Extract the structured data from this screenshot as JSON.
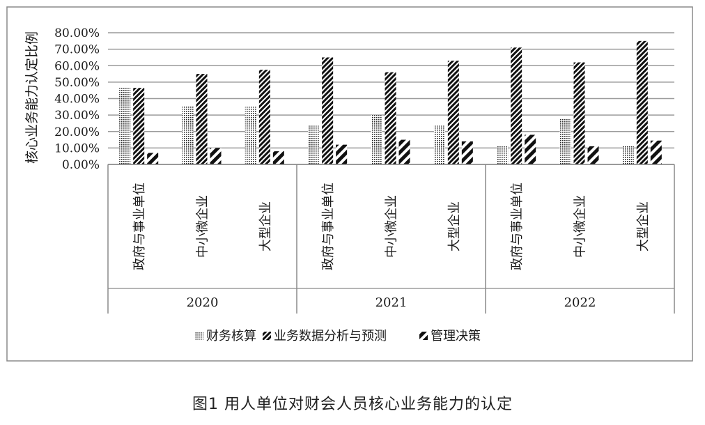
{
  "chart_data": {
    "type": "bar",
    "ylabel": "核心业务能力认定比例",
    "ylim": [
      0,
      80
    ],
    "yticks": [
      "0.00%",
      "10.00%",
      "20.00%",
      "30.00%",
      "40.00%",
      "50.00%",
      "60.00%",
      "70.00%",
      "80.00%"
    ],
    "groups": [
      {
        "label": "2020",
        "categories": [
          "政府与事业单位",
          "中小微企业",
          "大型企业"
        ]
      },
      {
        "label": "2021",
        "categories": [
          "政府与事业单位",
          "中小微企业",
          "大型企业"
        ]
      },
      {
        "label": "2022",
        "categories": [
          "政府与事业单位",
          "中小微企业",
          "大型企业"
        ]
      }
    ],
    "series": [
      {
        "name": "财务核算",
        "pattern": "dots",
        "values": [
          46.5,
          35.5,
          35,
          23.5,
          30,
          23.5,
          11.5,
          28,
          11
        ]
      },
      {
        "name": "业务数据分析与预测",
        "pattern": "dense-hatch",
        "values": [
          46.5,
          55,
          57.5,
          65,
          56,
          63,
          71,
          62,
          75
        ]
      },
      {
        "name": "管理决策",
        "pattern": "wide-hatch",
        "values": [
          7,
          10,
          8,
          12,
          15,
          14,
          18,
          11,
          14.5
        ]
      }
    ],
    "grid": true,
    "legend_position": "bottom"
  },
  "caption": "图1 用人单位对财会人员核心业务能力的认定",
  "colors": {
    "bar": "#1a1a1a",
    "grid": "#9a9a9a",
    "frame": "#8a8a8a"
  }
}
